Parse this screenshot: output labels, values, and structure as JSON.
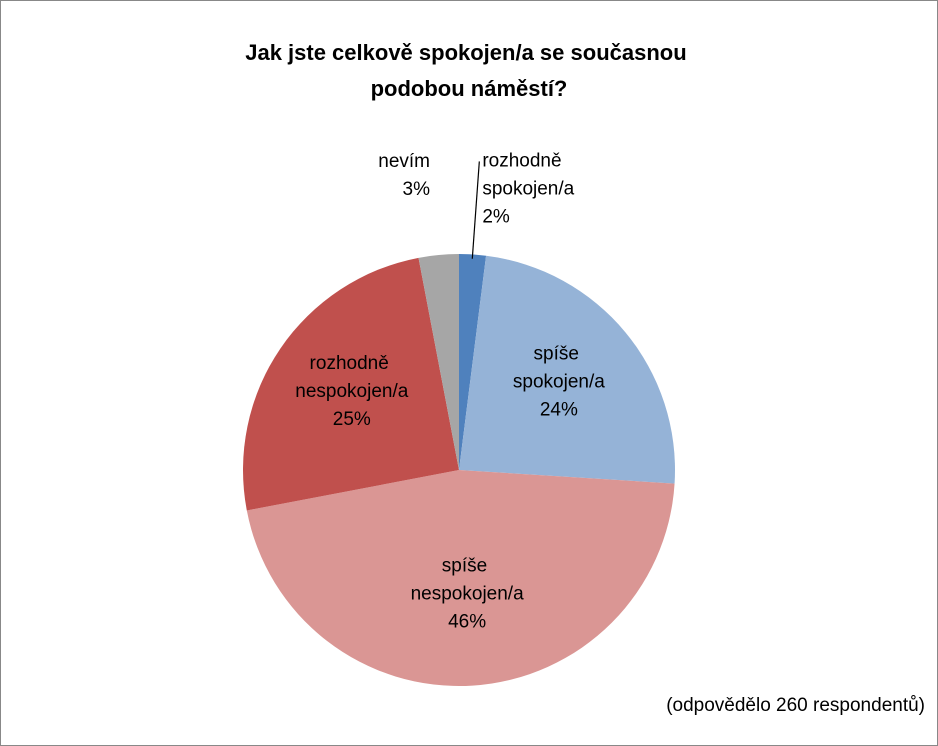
{
  "chart_data": {
    "type": "pie",
    "title": "Jak jste celkově spokojen/a se současnou podobou náměstí?",
    "categories": [
      "rozhodně spokojen/a",
      "spíše spokojen/a",
      "spíše nespokojen/a",
      "rozhodně nespokojen/a",
      "nevím"
    ],
    "values": [
      2,
      24,
      46,
      25,
      3
    ],
    "value_labels": [
      "2%",
      "24%",
      "46%",
      "25%",
      "3%"
    ],
    "colors": [
      "#4f81bd",
      "#95b3d7",
      "#da9694",
      "#c0504d",
      "#a6a6a6"
    ],
    "annotation": "(odpovědělo 260 respondentů)"
  }
}
